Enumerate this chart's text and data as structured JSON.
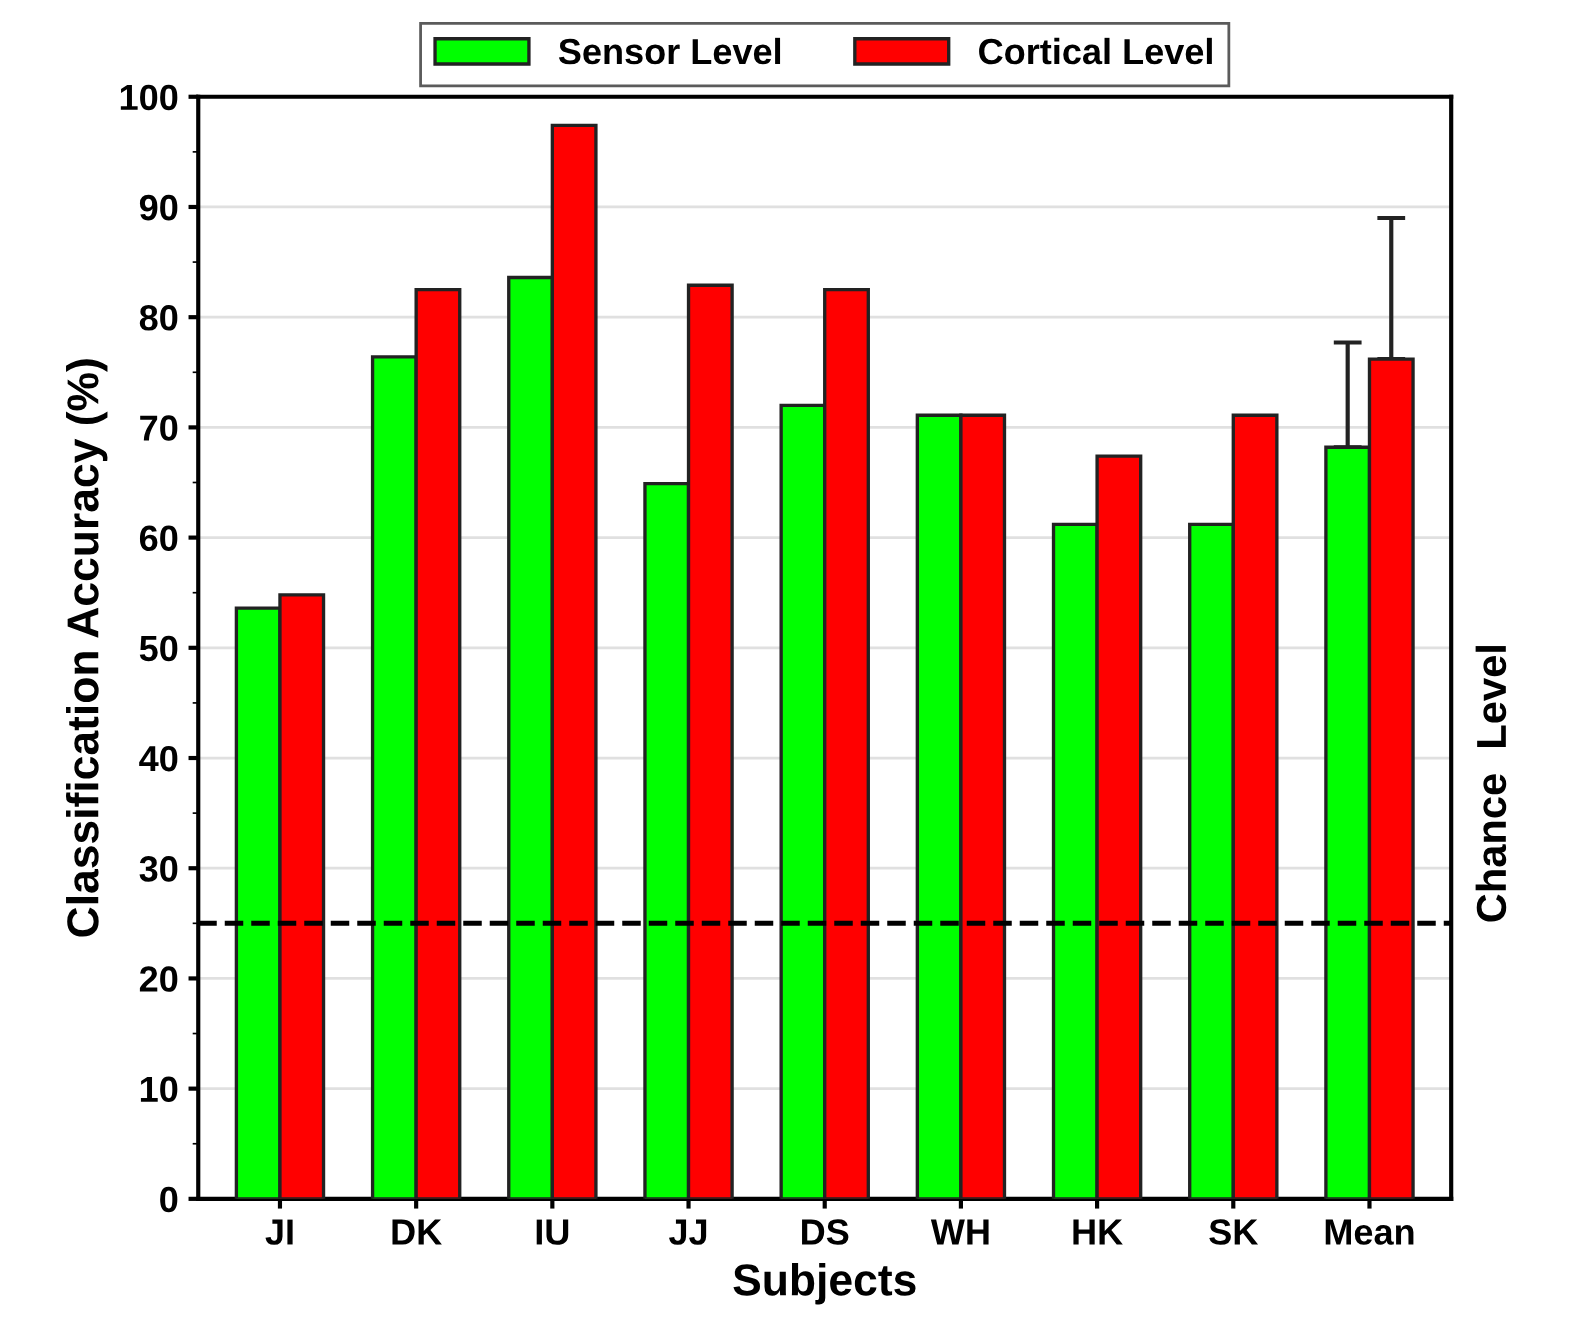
{
  "chart_data": {
    "type": "bar",
    "xlabel": "Subjects",
    "ylabel": "Classification Accuracy (%)",
    "categories": [
      "JI",
      "DK",
      "IU",
      "JJ",
      "DS",
      "WH",
      "HK",
      "SK",
      "Mean"
    ],
    "series": [
      {
        "name": "Sensor Level",
        "color": "#00ff00",
        "values": [
          53.6,
          76.4,
          83.6,
          64.9,
          72.0,
          71.1,
          61.2,
          61.2,
          68.2
        ],
        "errors": [
          null,
          null,
          null,
          null,
          null,
          null,
          null,
          null,
          [
            68.2,
            77.7
          ]
        ]
      },
      {
        "name": "Cortical Level",
        "color": "#ff0000",
        "values": [
          54.8,
          82.5,
          97.4,
          82.9,
          82.5,
          71.1,
          67.4,
          71.1,
          76.2
        ],
        "errors": [
          null,
          null,
          null,
          null,
          null,
          null,
          null,
          null,
          [
            76.2,
            89.0
          ]
        ]
      }
    ],
    "ylim": [
      0,
      100
    ],
    "yticks": [
      0,
      10,
      20,
      30,
      40,
      50,
      60,
      70,
      80,
      90,
      100
    ],
    "ref_lines": [
      {
        "axis": "y",
        "value": 25,
        "label": "Chance  Level",
        "color": "#000000",
        "line_style": "dashed"
      }
    ],
    "grid": "y",
    "legend": "top"
  }
}
